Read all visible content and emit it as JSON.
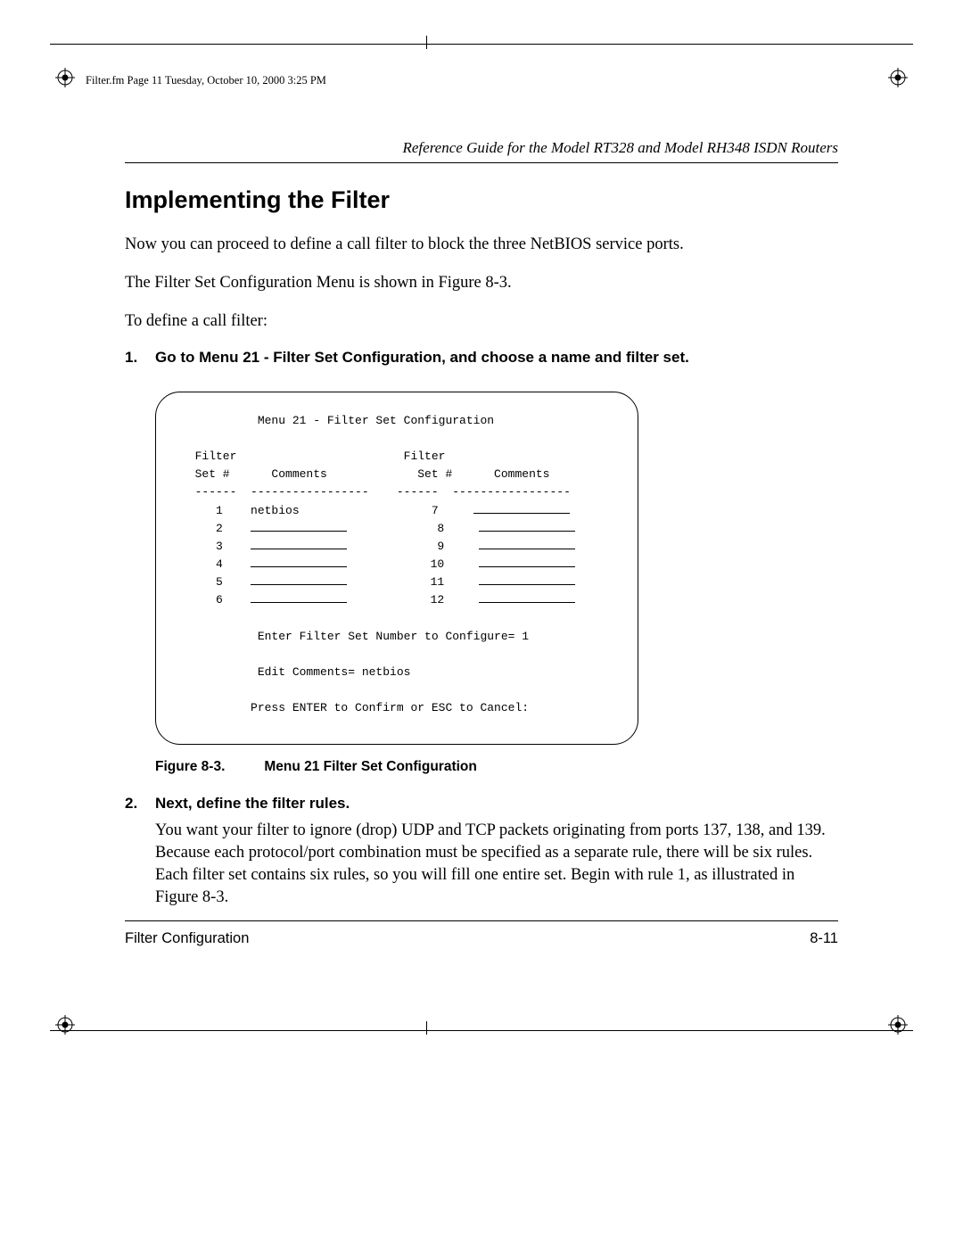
{
  "file_tag": "Filter.fm  Page 11  Tuesday, October 10, 2000  3:25 PM",
  "running_head": "Reference Guide for the Model RT328 and Model RH348 ISDN Routers",
  "section_title": "Implementing the Filter",
  "para1": "Now you can proceed to define a call filter to block the three NetBIOS service ports.",
  "para2": "The Filter Set Configuration Menu is shown in Figure 8-3.",
  "para3": "To define a call filter:",
  "step1": {
    "num": "1.",
    "text": "Go to Menu 21 - Filter Set Configuration, and choose a name and filter set."
  },
  "terminal": {
    "title": "Menu 21 - Filter Set Configuration",
    "col_left_h1": "Filter",
    "col_left_h2": "Set #",
    "col_left_h3": "Comments",
    "col_right_h1": "Filter",
    "col_right_h2": "Set #",
    "col_right_h3": "Comments",
    "rows_left": [
      "1",
      "2",
      "3",
      "4",
      "5",
      "6"
    ],
    "rows_right": [
      "7",
      "8",
      "9",
      "10",
      "11",
      "12"
    ],
    "row1_comment": "netbios",
    "prompt1": "Enter Filter Set Number to Configure= 1",
    "prompt2": "Edit Comments= netbios",
    "prompt3": "Press ENTER to Confirm or ESC to Cancel:"
  },
  "caption": {
    "label": "Figure 8-3.",
    "text": "Menu 21 Filter Set Configuration"
  },
  "step2": {
    "num": "2.",
    "text": "Next, define the filter rules.",
    "body": "You want your filter to ignore (drop) UDP and TCP packets originating from ports 137, 138, and 139. Because each protocol/port combination must be specified as a separate rule, there will be six rules. Each filter set contains six rules, so you will fill one entire set. Begin with rule 1, as illustrated in Figure 8-3."
  },
  "footer": {
    "left": "Filter Configuration",
    "right": "8-11"
  }
}
